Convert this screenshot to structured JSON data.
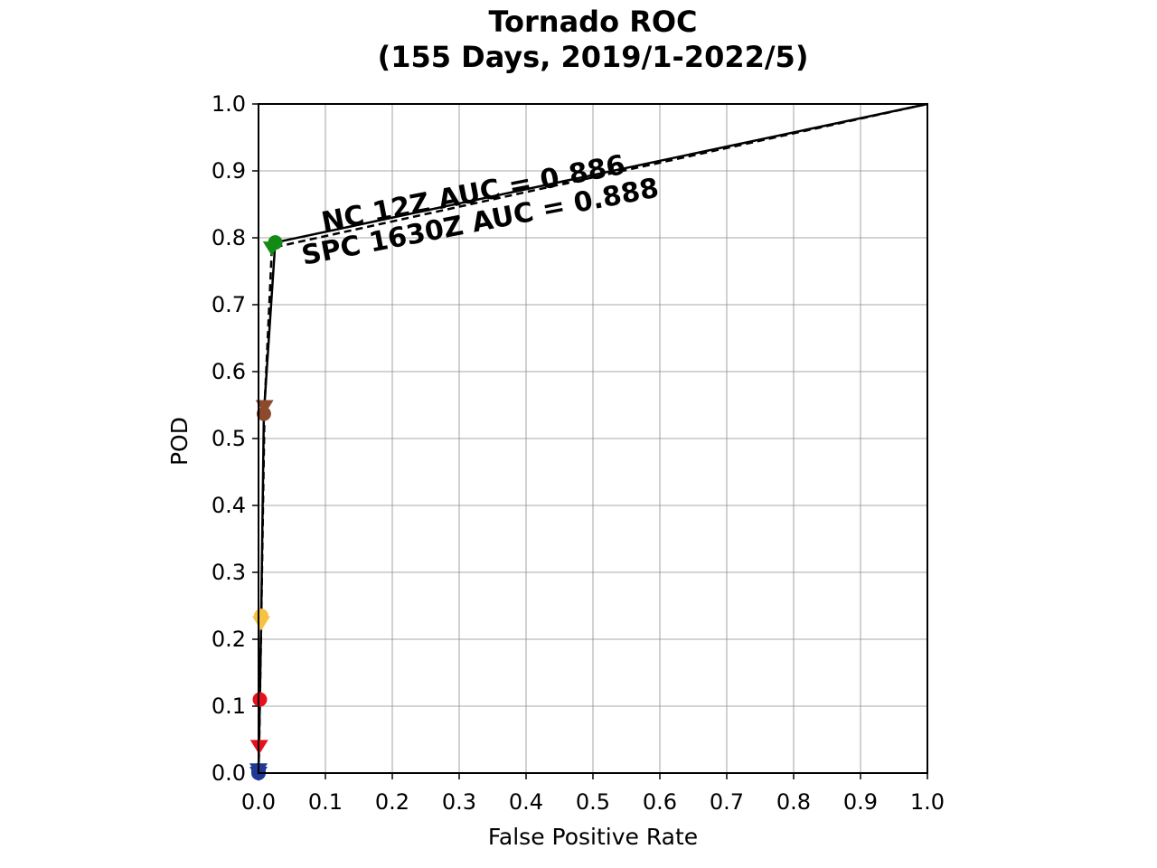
{
  "chart_data": {
    "type": "line",
    "title": "Tornado ROC",
    "subtitle": "(155 Days, 2019/1-2022/5)",
    "xlabel": "False Positive Rate",
    "ylabel": "POD",
    "xlim": [
      0,
      1
    ],
    "ylim": [
      0,
      1
    ],
    "grid": true,
    "ticks": [
      "0.0",
      "0.1",
      "0.2",
      "0.3",
      "0.4",
      "0.5",
      "0.6",
      "0.7",
      "0.8",
      "0.9",
      "1.0"
    ],
    "series": [
      {
        "name": "NC 12Z",
        "auc_label": "NC 12Z AUC = 0.886",
        "line_style": "solid",
        "marker": "circle",
        "x": [
          0.0,
          0.0,
          0.002,
          0.004,
          0.008,
          0.025,
          1.0
        ],
        "y": [
          0.0,
          0.004,
          0.11,
          0.235,
          0.537,
          0.793,
          1.0
        ],
        "point_colors": [
          "#1f3a93",
          "#1f3a93",
          "#e8101a",
          "#f5c242",
          "#8b4a2b",
          "#138a13",
          "#000000"
        ]
      },
      {
        "name": "SPC 1630Z",
        "auc_label": "SPC 1630Z AUC = 0.888",
        "line_style": "dashed",
        "marker": "triangle-down",
        "x": [
          0.0,
          0.0,
          0.001,
          0.004,
          0.009,
          0.02,
          1.0
        ],
        "y": [
          0.0,
          0.005,
          0.04,
          0.225,
          0.548,
          0.785,
          1.0
        ],
        "point_colors": [
          "#1f3a93",
          "#1f3a93",
          "#e8101a",
          "#f5c242",
          "#8b4a2b",
          "#138a13",
          "#000000"
        ]
      }
    ]
  }
}
